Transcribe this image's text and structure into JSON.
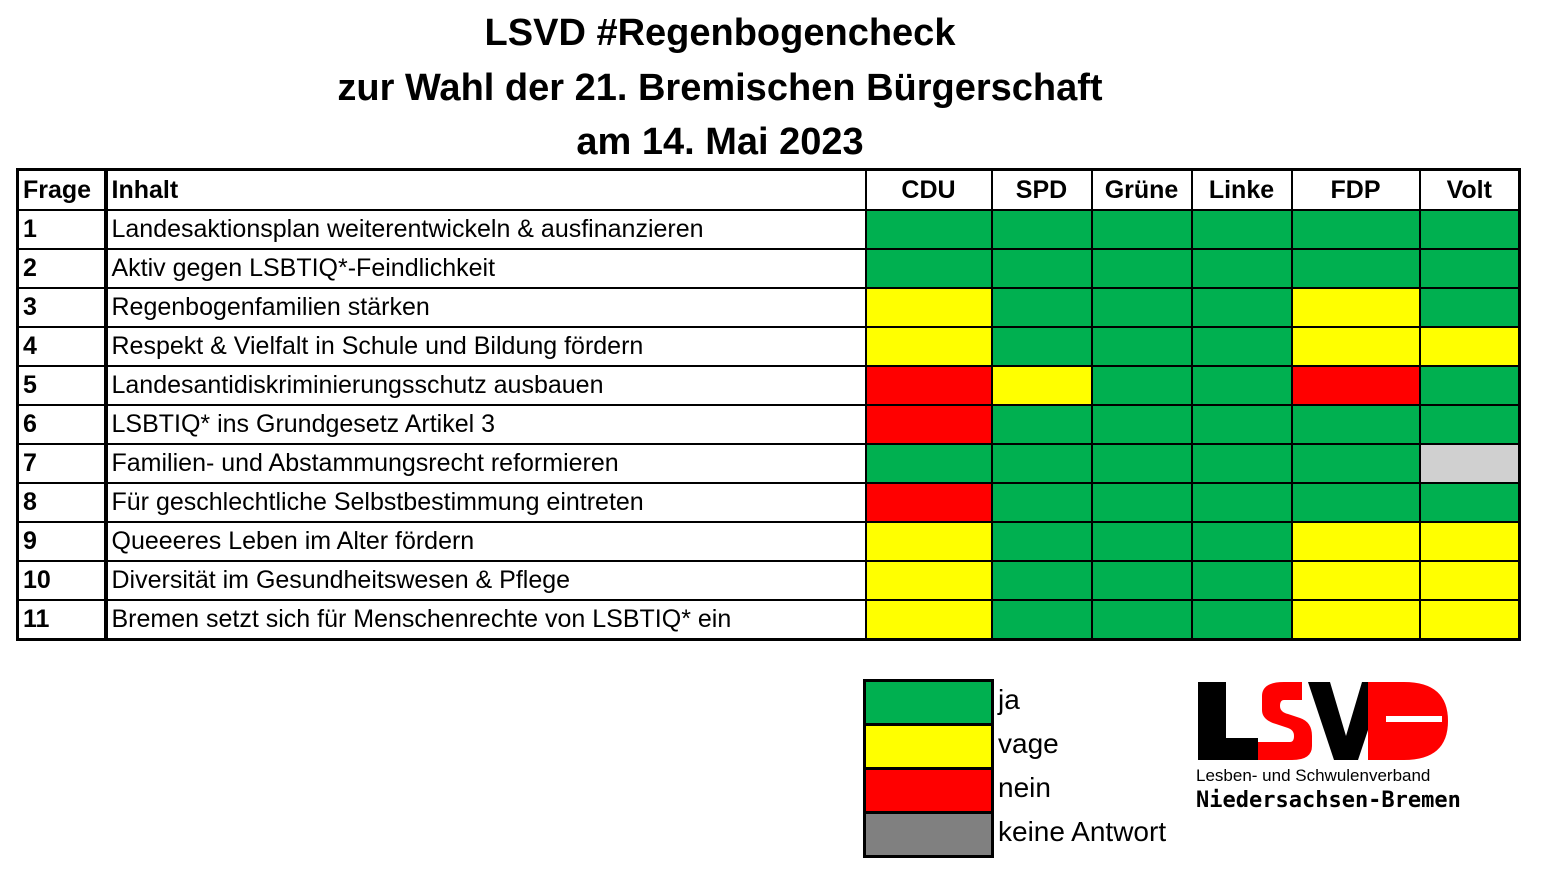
{
  "title": {
    "line1": "LSVD #Regenbogencheck",
    "line2": "zur Wahl der 21. Bremischen Bürgerschaft",
    "line3": "am 14. Mai 2023"
  },
  "colors": {
    "ja": "#00b050",
    "vage": "#ffff00",
    "nein": "#ff0000",
    "keine": "#d0d0d0",
    "keine_legend": "#808080"
  },
  "chart_data": {
    "type": "table",
    "columns": [
      "Frage",
      "Inhalt",
      "CDU",
      "SPD",
      "Grüne",
      "Linke",
      "FDP",
      "Volt"
    ],
    "parties": [
      "CDU",
      "SPD",
      "Grüne",
      "Linke",
      "FDP",
      "Volt"
    ],
    "rows": [
      {
        "frage": "1",
        "inhalt": "Landesaktionsplan weiterentwickeln & ausfinanzieren",
        "answers": [
          "ja",
          "ja",
          "ja",
          "ja",
          "ja",
          "ja"
        ]
      },
      {
        "frage": "2",
        "inhalt": "Aktiv gegen LSBTIQ*-Feindlichkeit",
        "answers": [
          "ja",
          "ja",
          "ja",
          "ja",
          "ja",
          "ja"
        ]
      },
      {
        "frage": "3",
        "inhalt": "Regenbogenfamilien stärken",
        "answers": [
          "vage",
          "ja",
          "ja",
          "ja",
          "vage",
          "ja"
        ]
      },
      {
        "frage": "4",
        "inhalt": "Respekt & Vielfalt in Schule und Bildung fördern",
        "answers": [
          "vage",
          "ja",
          "ja",
          "ja",
          "vage",
          "vage"
        ]
      },
      {
        "frage": "5",
        "inhalt": "Landesantidiskriminierungsschutz ausbauen",
        "answers": [
          "nein",
          "vage",
          "ja",
          "ja",
          "nein",
          "ja"
        ]
      },
      {
        "frage": "6",
        "inhalt": "LSBTIQ* ins Grundgesetz Artikel 3",
        "answers": [
          "nein",
          "ja",
          "ja",
          "ja",
          "ja",
          "ja"
        ]
      },
      {
        "frage": "7",
        "inhalt": "Familien- und Abstammungsrecht reformieren",
        "answers": [
          "ja",
          "ja",
          "ja",
          "ja",
          "ja",
          "keine"
        ]
      },
      {
        "frage": "8",
        "inhalt": "Für geschlechtliche Selbstbestimmung eintreten",
        "answers": [
          "nein",
          "ja",
          "ja",
          "ja",
          "ja",
          "ja"
        ]
      },
      {
        "frage": "9",
        "inhalt": "Queeeres Leben im Alter fördern",
        "answers": [
          "vage",
          "ja",
          "ja",
          "ja",
          "vage",
          "vage"
        ]
      },
      {
        "frage": "10",
        "inhalt": "Diversität im Gesundheitswesen & Pflege",
        "answers": [
          "vage",
          "ja",
          "ja",
          "ja",
          "vage",
          "vage"
        ]
      },
      {
        "frage": "11",
        "inhalt": "Bremen setzt  sich für Menschenrechte von LSBTIQ* ein",
        "answers": [
          "vage",
          "ja",
          "ja",
          "ja",
          "vage",
          "vage"
        ]
      }
    ]
  },
  "legend": [
    {
      "key": "ja",
      "label": "ja"
    },
    {
      "key": "vage",
      "label": "vage"
    },
    {
      "key": "nein",
      "label": "nein"
    },
    {
      "key": "keine_legend",
      "label": "keine Antwort"
    }
  ],
  "logo": {
    "letters": "LSVD",
    "line1": "Lesben- und Schwulenverband",
    "line2": "Niedersachsen-Bremen"
  }
}
